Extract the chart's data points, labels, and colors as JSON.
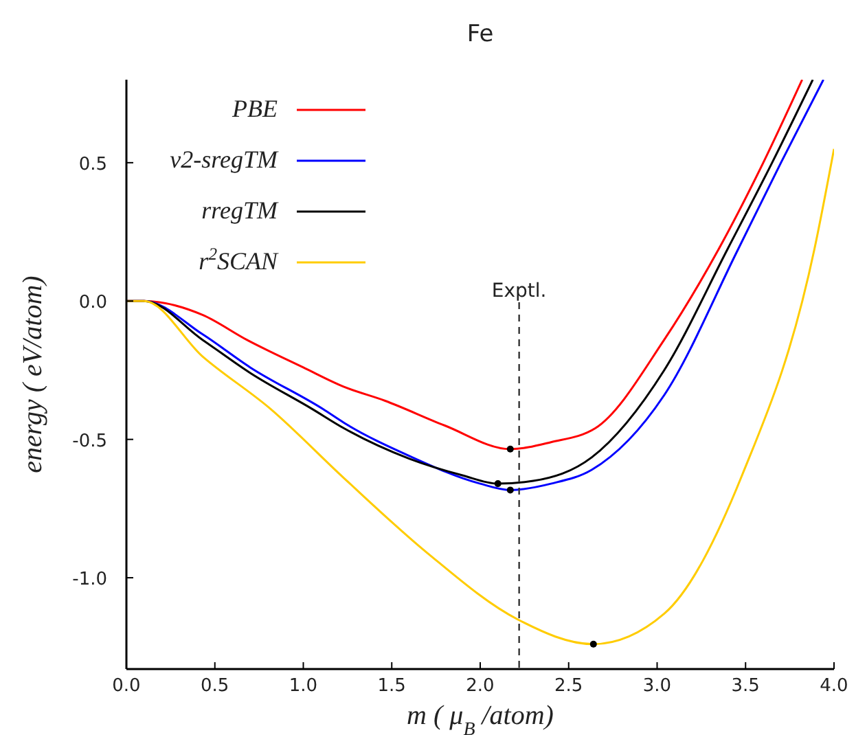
{
  "chart_data": {
    "type": "line",
    "title": "Fe",
    "xlabel": "m ( μ$_{B}$ /atom)",
    "ylabel": "energy ( eV/atom)",
    "xlim": [
      0,
      4
    ],
    "ylim": [
      -1.33,
      0.8
    ],
    "xticks": [
      {
        "value": 0,
        "label": "0.0"
      },
      0.5,
      {
        "value": 1,
        "label": "1.0"
      },
      1.5,
      {
        "value": 2,
        "label": "2.0"
      },
      2.5,
      {
        "value": 3,
        "label": "3.0"
      },
      3.5,
      {
        "value": 4,
        "label": "4.0"
      }
    ],
    "yticks": [
      {
        "value": -1,
        "label": "-1.0"
      },
      -0.5,
      {
        "value": 0,
        "label": "0.0"
      },
      0.5
    ],
    "grid": false,
    "legend": "top left",
    "line_style": "solid",
    "marker": "none",
    "ref_lines": [
      {
        "axis": "x",
        "value": 2.22,
        "label": "Exptl.",
        "color": "#333333",
        "line_style": "dashed"
      }
    ],
    "series": [
      {
        "name": "PBE",
        "color": "#ff0000",
        "x": [
          0,
          0.1,
          0.43,
          0.68,
          1.0,
          1.23,
          1.46,
          1.8,
          2.17,
          2.4,
          2.65,
          3.04,
          3.35,
          3.6,
          3.82
        ],
        "values": [
          0,
          0,
          -0.05,
          -0.14,
          -0.24,
          -0.31,
          -0.36,
          -0.45,
          -0.535,
          -0.51,
          -0.46,
          -0.14,
          0.19,
          0.5,
          0.8
        ]
      },
      {
        "name": "v2-sregTM",
        "color": "#0000ff",
        "x": [
          0,
          0.1,
          0.43,
          0.7,
          1.11,
          1.23,
          1.6,
          2.0,
          2.17,
          2.4,
          2.63,
          3.04,
          3.46,
          3.7,
          3.94
        ],
        "values": [
          0,
          0,
          -0.12,
          -0.24,
          -0.39,
          -0.44,
          -0.56,
          -0.66,
          -0.683,
          -0.66,
          -0.61,
          -0.34,
          0.19,
          0.5,
          0.8
        ]
      },
      {
        "name": "rregTM",
        "color": "#000000",
        "x": [
          0,
          0.1,
          0.43,
          0.7,
          1.05,
          1.23,
          1.6,
          1.9,
          2.1,
          2.3,
          2.63,
          3.04,
          3.4,
          3.65,
          3.88
        ],
        "values": [
          0,
          0,
          -0.14,
          -0.26,
          -0.39,
          -0.46,
          -0.57,
          -0.63,
          -0.66,
          -0.65,
          -0.565,
          -0.25,
          0.19,
          0.5,
          0.8
        ]
      },
      {
        "name": "r$^{2}$SCAN",
        "color": "#ffcc00",
        "x": [
          0,
          0.1,
          0.43,
          0.815,
          1.23,
          1.7,
          2.21,
          2.64,
          3.04,
          3.48,
          3.89,
          4.0
        ],
        "values": [
          0,
          0,
          -0.2,
          -0.39,
          -0.64,
          -0.91,
          -1.15,
          -1.24,
          -1.13,
          -0.63,
          0.19,
          0.55
        ]
      },
      {
        "type": "scatter",
        "marker": "circle",
        "color": "#000000",
        "x": [
          2.17,
          2.17,
          2.1,
          2.64
        ],
        "values": [
          -0.535,
          -0.683,
          -0.66,
          -1.24
        ]
      }
    ]
  }
}
